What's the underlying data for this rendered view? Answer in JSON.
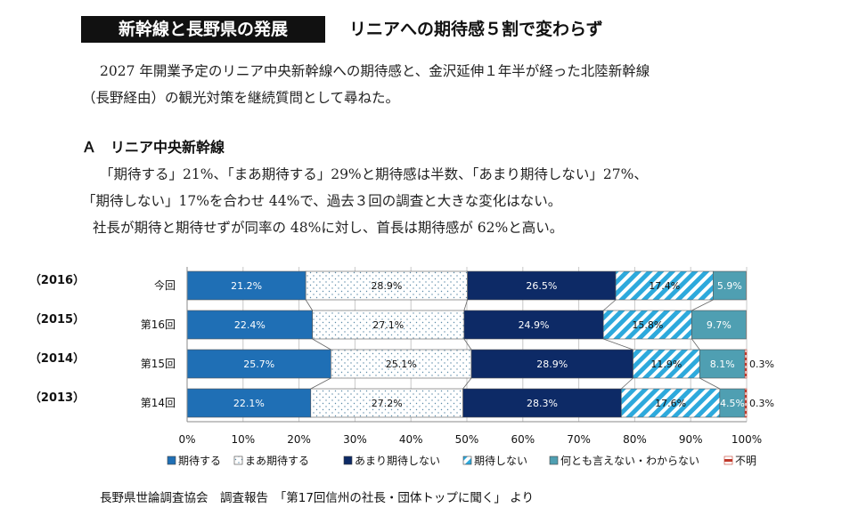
{
  "header": {
    "title": "新幹線と長野県の発展",
    "subtitle": "リニアへの期待感５割で変わらず"
  },
  "intro": {
    "line1": "2027 年開業予定のリニア中央新幹線への期待感と、金沢延伸１年半が経った北陸新幹線",
    "line2": "（長野経由）の観光対策を継続質問として尋ねた。"
  },
  "section": {
    "heading": "Ａ　リニア中央新幹線",
    "line1": "「期待する」21%、「まあ期待する」29%と期待感は半数、「あまり期待しない」27%、",
    "line2": "「期待しない」17%を合わせ 44%で、過去３回の調査と大きな変化はない。",
    "line3": "社長が期待と期待せずが同率の 48%に対し、首長は期待感が 62%と高い。"
  },
  "source": "長野県世論調査協会　調査報告　「第17回信州の社長・団体トップに聞く」 より",
  "chart_data": {
    "type": "bar",
    "orientation": "horizontal",
    "stacked": true,
    "percent": true,
    "categories": [
      "今回",
      "第16回",
      "第15回",
      "第14回"
    ],
    "year_labels": [
      "（2016）",
      "（2015）",
      "（2014）",
      "（2013）"
    ],
    "series": [
      {
        "name": "期待する",
        "values": [
          21.2,
          22.4,
          25.7,
          22.1
        ],
        "color": "#1f6fb5",
        "pattern": "solid",
        "label_color": "#ffffff"
      },
      {
        "name": "まあ期待する",
        "values": [
          28.9,
          27.1,
          25.1,
          27.2
        ],
        "color": "#ffffff",
        "pattern": "dots",
        "label_color": "#111111"
      },
      {
        "name": "あまり期待しない",
        "values": [
          26.5,
          24.9,
          28.9,
          28.3
        ],
        "color": "#0d2a66",
        "pattern": "solid",
        "label_color": "#ffffff"
      },
      {
        "name": "期待しない",
        "values": [
          17.4,
          15.8,
          11.9,
          17.6
        ],
        "color": "#2da9dc",
        "pattern": "stripes",
        "label_color": "#111111"
      },
      {
        "name": "何とも言えない・わからない",
        "values": [
          5.9,
          9.7,
          8.1,
          4.5
        ],
        "color": "#4f9fb2",
        "pattern": "solid",
        "label_color": "#ffffff"
      },
      {
        "name": "不明",
        "values": [
          0,
          0,
          0.3,
          0.3
        ],
        "color": "#c0392b",
        "pattern": "dashed",
        "label_color": "#111111"
      }
    ],
    "data_labels": [
      [
        "21.2%",
        "28.9%",
        "26.5%",
        "17.4%",
        "5.9%",
        ""
      ],
      [
        "22.4%",
        "27.1%",
        "24.9%",
        "15.8%",
        "9.7%",
        ""
      ],
      [
        "25.7%",
        "25.1%",
        "28.9%",
        "11.9%",
        "8.1%",
        "0.3%"
      ],
      [
        "22.1%",
        "27.2%",
        "28.3%",
        "17.6%",
        "4.5%",
        "0.3%"
      ]
    ],
    "x_ticks": [
      "0%",
      "10%",
      "20%",
      "30%",
      "40%",
      "50%",
      "60%",
      "70%",
      "80%",
      "90%",
      "100%"
    ],
    "xlim": [
      0,
      100
    ],
    "grid": true,
    "legend": "bottom"
  }
}
